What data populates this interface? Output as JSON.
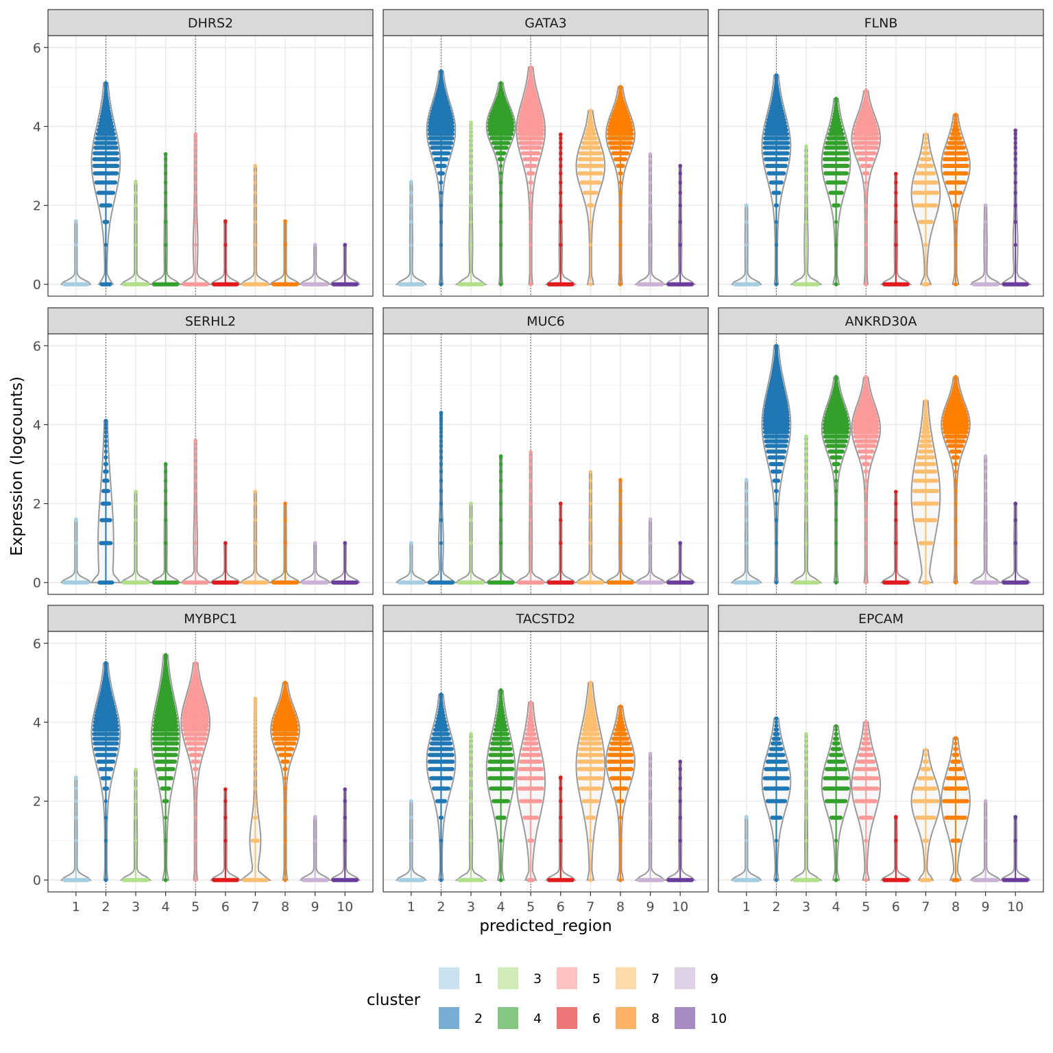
{
  "chart_data": {
    "type": "violin",
    "facet_by": "gene",
    "xlabel": "predicted_region",
    "ylabel": "Expression (logcounts)",
    "x_categories": [
      "1",
      "2",
      "3",
      "4",
      "5",
      "6",
      "7",
      "8",
      "9",
      "10"
    ],
    "ylim": [
      -0.3,
      6.3
    ],
    "y_ticks": [
      "0",
      "2",
      "4",
      "6"
    ],
    "reference_lines_x": [
      "2",
      "5"
    ],
    "grid": true,
    "legend": {
      "title": "cluster",
      "position": "bottom",
      "entries": [
        {
          "label": "1",
          "color": "#A6CEE3"
        },
        {
          "label": "2",
          "color": "#1F78B4"
        },
        {
          "label": "3",
          "color": "#B2DF8A"
        },
        {
          "label": "4",
          "color": "#33A02C"
        },
        {
          "label": "5",
          "color": "#FB9A99"
        },
        {
          "label": "6",
          "color": "#E31A1C"
        },
        {
          "label": "7",
          "color": "#FDBF6F"
        },
        {
          "label": "8",
          "color": "#FF7F00"
        },
        {
          "label": "9",
          "color": "#CAB2D6"
        },
        {
          "label": "10",
          "color": "#6A3D9A"
        }
      ]
    },
    "panels": [
      {
        "gene": "DHRS2",
        "peak": [
          0,
          3.1,
          0,
          0,
          0,
          0,
          0,
          0,
          0,
          0
        ],
        "max": [
          1.6,
          5.1,
          2.6,
          3.3,
          3.8,
          1.6,
          3.0,
          1.6,
          1.0,
          1.0
        ],
        "zero_frac": [
          0.97,
          0.15,
          0.92,
          0.8,
          0.6,
          0.97,
          0.92,
          0.95,
          0.98,
          0.95
        ]
      },
      {
        "gene": "GATA3",
        "peak": [
          0,
          3.9,
          0,
          4.0,
          3.9,
          0,
          3.0,
          3.8,
          0,
          0
        ],
        "max": [
          2.6,
          5.4,
          4.1,
          5.1,
          5.5,
          3.8,
          4.4,
          5.0,
          3.3,
          3.0
        ],
        "zero_frac": [
          0.85,
          0.02,
          0.75,
          0.02,
          0.02,
          0.8,
          0.05,
          0.02,
          0.85,
          0.8
        ]
      },
      {
        "gene": "FLNB",
        "peak": [
          0,
          3.5,
          0,
          3.1,
          3.7,
          0,
          2.3,
          3.0,
          0,
          0
        ],
        "max": [
          2.0,
          5.3,
          3.5,
          4.7,
          4.9,
          2.8,
          3.8,
          4.3,
          2.0,
          3.9
        ],
        "zero_frac": [
          0.85,
          0.02,
          0.7,
          0.05,
          0.02,
          0.8,
          0.1,
          0.05,
          0.8,
          0.6
        ]
      },
      {
        "gene": "SERHL2",
        "peak": [
          0,
          1.0,
          0,
          0,
          0,
          0,
          0,
          0,
          0,
          0
        ],
        "max": [
          1.6,
          4.1,
          2.3,
          3.0,
          3.6,
          1.0,
          2.3,
          2.0,
          1.0,
          1.0
        ],
        "zero_frac": [
          0.97,
          0.4,
          0.95,
          0.85,
          0.7,
          0.98,
          0.92,
          0.95,
          0.98,
          0.97
        ]
      },
      {
        "gene": "MUC6",
        "peak": [
          0,
          0,
          0,
          0,
          0,
          0,
          0,
          0,
          0,
          0
        ],
        "max": [
          1.0,
          4.3,
          2.0,
          3.2,
          3.3,
          2.0,
          2.8,
          2.6,
          1.6,
          1.0
        ],
        "zero_frac": [
          0.98,
          0.6,
          0.97,
          0.9,
          0.85,
          0.97,
          0.9,
          0.9,
          0.98,
          0.98
        ]
      },
      {
        "gene": "ANKRD30A",
        "peak": [
          0,
          4.0,
          0,
          3.9,
          3.9,
          0,
          2.2,
          4.0,
          0,
          0
        ],
        "max": [
          2.6,
          6.0,
          3.7,
          5.2,
          5.2,
          2.3,
          4.6,
          5.2,
          3.2,
          2.0
        ],
        "zero_frac": [
          0.9,
          0.02,
          0.8,
          0.03,
          0.02,
          0.85,
          0.1,
          0.02,
          0.85,
          0.85
        ]
      },
      {
        "gene": "MYBPC1",
        "peak": [
          0,
          3.7,
          0,
          3.6,
          4.0,
          0,
          0,
          3.8,
          0,
          0
        ],
        "max": [
          2.6,
          5.5,
          2.8,
          5.7,
          5.5,
          2.3,
          4.6,
          5.0,
          1.6,
          2.3
        ],
        "zero_frac": [
          0.9,
          0.02,
          0.8,
          0.05,
          0.02,
          0.85,
          0.3,
          0.03,
          0.9,
          0.85
        ]
      },
      {
        "gene": "TACSTD2",
        "peak": [
          0,
          3.0,
          0,
          2.8,
          2.5,
          0,
          2.9,
          3.0,
          0,
          0
        ],
        "max": [
          2.0,
          4.7,
          3.7,
          4.8,
          4.5,
          2.6,
          5.0,
          4.4,
          3.2,
          3.0
        ],
        "zero_frac": [
          0.9,
          0.03,
          0.8,
          0.05,
          0.1,
          0.85,
          0.05,
          0.05,
          0.9,
          0.85
        ]
      },
      {
        "gene": "EPCAM",
        "peak": [
          0,
          2.5,
          0,
          2.4,
          2.4,
          0,
          2.0,
          2.0,
          0,
          0
        ],
        "max": [
          1.6,
          4.1,
          3.7,
          3.9,
          4.0,
          1.6,
          3.3,
          3.6,
          2.0,
          1.6
        ],
        "zero_frac": [
          0.95,
          0.03,
          0.85,
          0.05,
          0.05,
          0.9,
          0.15,
          0.1,
          0.95,
          0.9
        ]
      }
    ]
  }
}
